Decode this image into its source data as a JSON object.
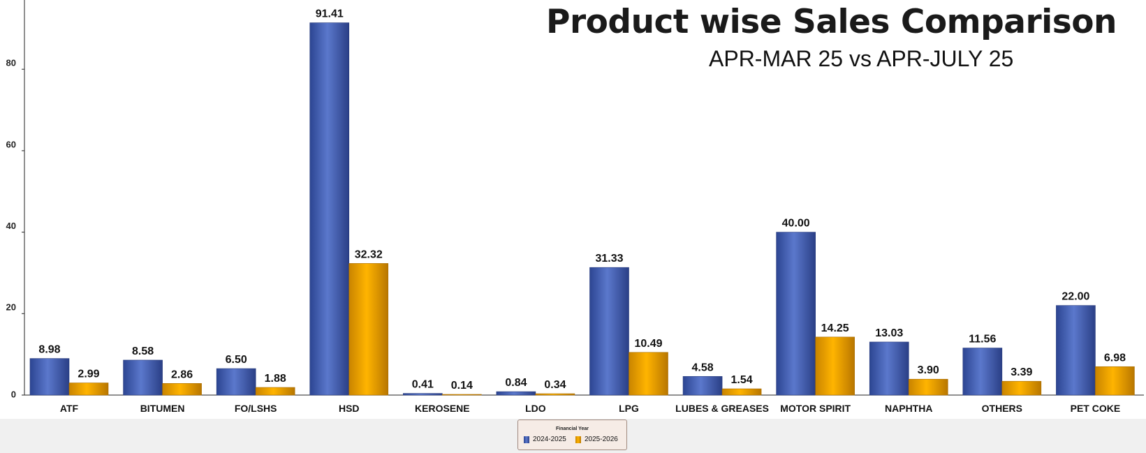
{
  "chart_data": {
    "type": "bar",
    "title": "Product wise Sales Comparison",
    "subtitle": "APR-MAR 25 vs APR-JULY 25",
    "categories": [
      "ATF",
      "BITUMEN",
      "FO/LSHS",
      "HSD",
      "KEROSENE",
      "LDO",
      "LPG",
      "LUBES & GREASES",
      "MOTOR SPIRIT",
      "NAPHTHA",
      "OTHERS",
      "PET COKE"
    ],
    "series": [
      {
        "name": "2024-2025",
        "values": [
          8.98,
          8.58,
          6.5,
          91.41,
          0.41,
          0.84,
          31.33,
          4.58,
          40.0,
          13.03,
          11.56,
          22.0
        ],
        "labels": [
          "8.98",
          "8.58",
          "6.50",
          "91.41",
          "0.41",
          "0.84",
          "31.33",
          "4.58",
          "40.00",
          "13.03",
          "11.56",
          "22.00"
        ]
      },
      {
        "name": "2025-2026",
        "values": [
          2.99,
          2.86,
          1.88,
          32.32,
          0.14,
          0.34,
          10.49,
          1.54,
          14.25,
          3.9,
          3.39,
          6.98
        ],
        "labels": [
          "2.99",
          "2.86",
          "1.88",
          "32.32",
          "0.14",
          "0.34",
          "10.49",
          "1.54",
          "14.25",
          "3.90",
          "3.39",
          "6.98"
        ]
      }
    ],
    "yticks": [
      "0",
      "20",
      "40",
      "60",
      "80"
    ],
    "ylim": [
      0,
      97
    ],
    "xlabel": "",
    "ylabel": "",
    "grid": false,
    "legend": {
      "title": "Financial Year",
      "placement": "bottom-center"
    },
    "colors": {
      "series1": "#4a66b8",
      "series2": "#f2a200"
    }
  }
}
